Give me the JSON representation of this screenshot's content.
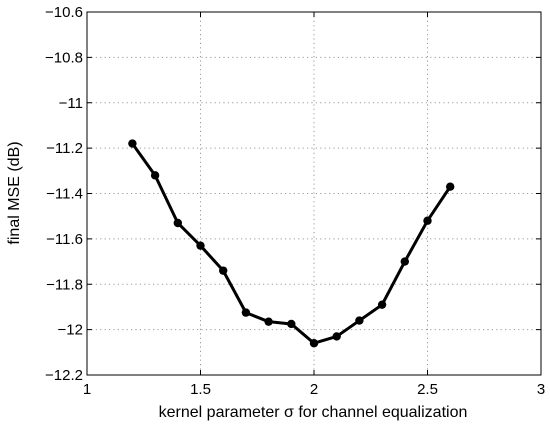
{
  "chart_data": {
    "type": "line",
    "title": "",
    "xlabel": "kernel parameter σ for channel equalization",
    "ylabel": "final MSE (dB)",
    "xlim": [
      1,
      3
    ],
    "ylim": [
      -12.2,
      -10.6
    ],
    "xticks": [
      1,
      1.5,
      2,
      2.5,
      3
    ],
    "xtick_labels": [
      "1",
      "1.5",
      "2",
      "2.5",
      "3"
    ],
    "yticks": [
      -10.6,
      -10.8,
      -11,
      -11.2,
      -11.4,
      -11.6,
      -11.8,
      -12,
      -12.2
    ],
    "ytick_labels": [
      "−10.6",
      "−10.8",
      "−11",
      "−11.2",
      "−11.4",
      "−11.6",
      "−11.8",
      "−12",
      "−12.2"
    ],
    "grid": true,
    "legend": "none",
    "series": [
      {
        "color": "#000000",
        "marker": "filled-circle",
        "x": [
          1.2,
          1.3,
          1.4,
          1.5,
          1.6,
          1.7,
          1.8,
          1.9,
          2.0,
          2.1,
          2.2,
          2.3,
          2.4,
          2.5,
          2.6
        ],
        "y": [
          -11.18,
          -11.32,
          -11.53,
          -11.63,
          -11.74,
          -11.925,
          -11.965,
          -11.975,
          -12.06,
          -12.03,
          -11.96,
          -11.89,
          -11.7,
          -11.52,
          -11.37
        ]
      }
    ]
  }
}
